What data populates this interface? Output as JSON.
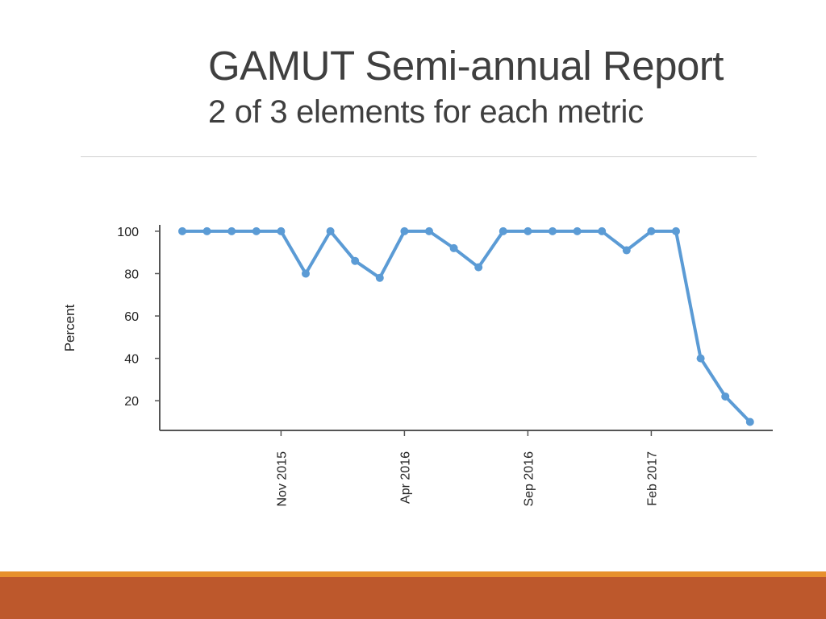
{
  "slide": {
    "title": "GAMUT Semi-annual Report",
    "subtitle": "2 of 3 elements for each metric"
  },
  "colors": {
    "title_text": "#3f3f3f",
    "line_series": "#5b9bd5",
    "accent_band_thin": "#e7902c",
    "accent_band": "#bd582c",
    "axis": "#555555"
  },
  "chart_data": {
    "type": "line",
    "title": "",
    "xlabel": "",
    "ylabel": "Percent",
    "ylim": [
      6,
      103
    ],
    "yticks": [
      20,
      40,
      60,
      80,
      100
    ],
    "grid": false,
    "legend": "none",
    "x_tick_labels": [
      {
        "index": 4,
        "label": "Nov 2015"
      },
      {
        "index": 9,
        "label": "Apr 2016"
      },
      {
        "index": 14,
        "label": "Sep 2016"
      },
      {
        "index": 19,
        "label": "Feb 2017"
      }
    ],
    "series": [
      {
        "values": [
          100,
          100,
          100,
          100,
          100,
          80,
          100,
          86,
          78,
          100,
          100,
          92,
          83,
          100,
          100,
          100,
          100,
          100,
          91,
          100,
          100,
          40,
          22,
          10
        ]
      }
    ]
  }
}
